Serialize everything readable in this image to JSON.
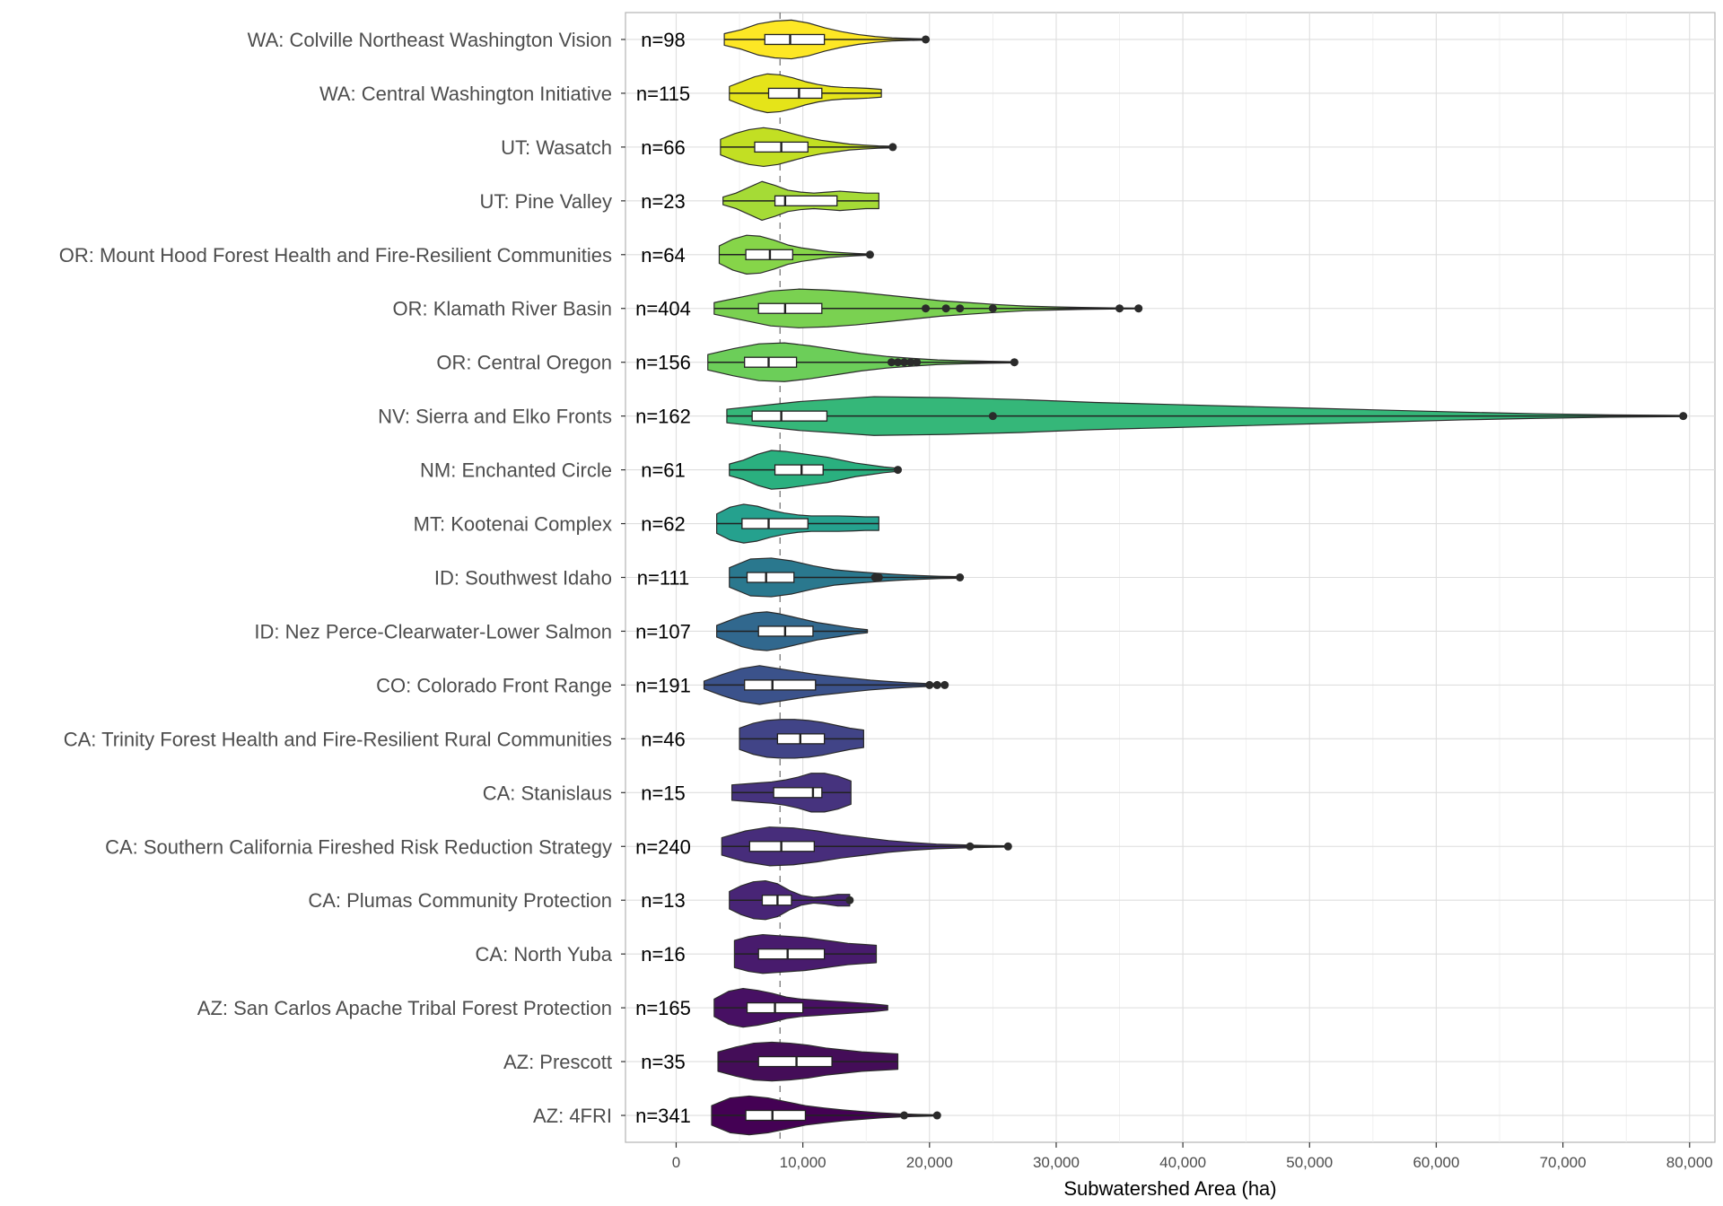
{
  "chart_data": {
    "type": "violin",
    "title": "",
    "xlabel": "Subwatershed Area (ha)",
    "ylabel": "",
    "xlim": [
      -4000,
      82000
    ],
    "x_ticks": [
      0,
      10000,
      20000,
      30000,
      40000,
      50000,
      60000,
      70000,
      80000
    ],
    "x_tick_labels": [
      "0",
      "10,000",
      "20,000",
      "30,000",
      "40,000",
      "50,000",
      "60,000",
      "70,000",
      "80,000"
    ],
    "reference_line": 8200,
    "grid": true,
    "legend": "none",
    "series": [
      {
        "name": "WA: Colville Northeast Washington Vision",
        "n_label": "n=98",
        "color": "#FDE725",
        "min": 3800,
        "q1": 7000,
        "median": 9000,
        "q3": 11700,
        "whisker_hi": 16000,
        "max": 19700,
        "outliers": [
          19700
        ],
        "density": [
          0.3,
          0.5,
          0.8,
          0.95,
          1.0,
          0.85,
          0.6,
          0.4,
          0.25,
          0.15,
          0.08,
          0.05,
          0.03
        ]
      },
      {
        "name": "WA: Central Washington Initiative",
        "n_label": "n=115",
        "color": "#E5E419",
        "min": 4200,
        "q1": 7300,
        "median": 9700,
        "q3": 11500,
        "whisker_hi": 16200,
        "max": 16200,
        "outliers": [],
        "density": [
          0.35,
          0.6,
          0.85,
          1.0,
          0.95,
          0.8,
          0.6,
          0.45,
          0.35,
          0.3,
          0.28,
          0.25,
          0.2
        ]
      },
      {
        "name": "UT: Wasatch",
        "n_label": "n=66",
        "color": "#C2DF23",
        "min": 3500,
        "q1": 6200,
        "median": 8300,
        "q3": 10400,
        "whisker_hi": 15500,
        "max": 17100,
        "outliers": [
          17100
        ],
        "density": [
          0.4,
          0.7,
          0.9,
          1.0,
          0.9,
          0.7,
          0.5,
          0.35,
          0.25,
          0.15,
          0.1,
          0.06,
          0.04
        ]
      },
      {
        "name": "UT: Pine Valley",
        "n_label": "n=23",
        "color": "#A5DB36",
        "min": 3700,
        "q1": 7800,
        "median": 8600,
        "q3": 12700,
        "whisker_hi": 16000,
        "max": 16000,
        "outliers": [],
        "density": [
          0.2,
          0.4,
          0.7,
          1.0,
          0.8,
          0.55,
          0.45,
          0.4,
          0.45,
          0.5,
          0.45,
          0.4,
          0.4
        ]
      },
      {
        "name": "OR: Mount Hood Forest Health and Fire-Resilient Communities",
        "n_label": "n=64",
        "color": "#86D549",
        "min": 3400,
        "q1": 5500,
        "median": 7400,
        "q3": 9200,
        "whisker_hi": 13000,
        "max": 15300,
        "outliers": [
          15300
        ],
        "density": [
          0.45,
          0.8,
          1.0,
          0.95,
          0.75,
          0.5,
          0.35,
          0.25,
          0.15,
          0.1,
          0.06,
          0.03
        ]
      },
      {
        "name": "OR: Klamath River Basin",
        "n_label": "n=404",
        "color": "#7AD151",
        "min": 3000,
        "q1": 6500,
        "median": 8600,
        "q3": 11500,
        "whisker_hi": 19000,
        "max": 36500,
        "outliers": [
          19700,
          21300,
          22400,
          25000,
          35000,
          36500
        ],
        "density": [
          0.3,
          0.6,
          0.9,
          1.0,
          0.95,
          0.85,
          0.7,
          0.55,
          0.4,
          0.3,
          0.2,
          0.12,
          0.08,
          0.05,
          0.03,
          0.02
        ]
      },
      {
        "name": "OR: Central Oregon",
        "n_label": "n=156",
        "color": "#6CCE59",
        "min": 2500,
        "q1": 5400,
        "median": 7300,
        "q3": 9500,
        "whisker_hi": 16500,
        "max": 26700,
        "outliers": [
          17000,
          17500,
          18000,
          18500,
          19000,
          26700
        ],
        "density": [
          0.4,
          0.7,
          0.95,
          1.0,
          0.85,
          0.65,
          0.45,
          0.3,
          0.2,
          0.12,
          0.08,
          0.05,
          0.03
        ]
      },
      {
        "name": "NV: Sierra and Elko Fronts",
        "n_label": "n=162",
        "color": "#35B779",
        "min": 4000,
        "q1": 6000,
        "median": 8300,
        "q3": 11900,
        "whisker_hi": 19000,
        "max": 79500,
        "outliers": [
          25000,
          79500
        ],
        "density": [
          0.35,
          0.75,
          1.0,
          0.95,
          0.85,
          0.7,
          0.6,
          0.5,
          0.4,
          0.3,
          0.2,
          0.12,
          0.06,
          0.03
        ]
      },
      {
        "name": "NM: Enchanted Circle",
        "n_label": "n=61",
        "color": "#2AB07F",
        "min": 4200,
        "q1": 7800,
        "median": 9900,
        "q3": 11600,
        "whisker_hi": 17500,
        "max": 17500,
        "outliers": [
          17500
        ],
        "density": [
          0.3,
          0.5,
          0.8,
          1.0,
          0.95,
          0.85,
          0.75,
          0.65,
          0.5,
          0.35,
          0.25,
          0.15,
          0.08
        ]
      },
      {
        "name": "MT: Kootenai Complex",
        "n_label": "n=62",
        "color": "#25A18E",
        "min": 3200,
        "q1": 5200,
        "median": 7300,
        "q3": 10400,
        "whisker_hi": 16000,
        "max": 16000,
        "outliers": [],
        "density": [
          0.5,
          0.85,
          1.0,
          0.9,
          0.7,
          0.55,
          0.45,
          0.4,
          0.4,
          0.4,
          0.38,
          0.35,
          0.35
        ]
      },
      {
        "name": "ID: Southwest Idaho",
        "n_label": "n=111",
        "color": "#2A788E",
        "min": 4200,
        "q1": 5600,
        "median": 7100,
        "q3": 9300,
        "whisker_hi": 15000,
        "max": 22400,
        "outliers": [
          15700,
          16000,
          22400
        ],
        "density": [
          0.5,
          0.95,
          1.0,
          0.85,
          0.6,
          0.4,
          0.3,
          0.22,
          0.15,
          0.1,
          0.06,
          0.04
        ]
      },
      {
        "name": "ID: Nez Perce-Clearwater-Lower Salmon",
        "n_label": "n=107",
        "color": "#31688E",
        "min": 3200,
        "q1": 6500,
        "median": 8600,
        "q3": 10800,
        "whisker_hi": 15100,
        "max": 15100,
        "outliers": [],
        "density": [
          0.3,
          0.55,
          0.8,
          0.95,
          1.0,
          0.9,
          0.75,
          0.6,
          0.45,
          0.35,
          0.25,
          0.15,
          0.08
        ]
      },
      {
        "name": "CO: Colorado Front Range",
        "n_label": "n=191",
        "color": "#3B528B",
        "min": 2200,
        "q1": 5400,
        "median": 7600,
        "q3": 11000,
        "whisker_hi": 18000,
        "max": 21200,
        "outliers": [
          20000,
          20600,
          21200
        ],
        "density": [
          0.2,
          0.55,
          0.85,
          1.0,
          0.85,
          0.7,
          0.55,
          0.45,
          0.35,
          0.25,
          0.18,
          0.12,
          0.08,
          0.05
        ]
      },
      {
        "name": "CA: Trinity Forest Health and Fire-Resilient Rural Communities",
        "n_label": "n=46",
        "color": "#414487",
        "min": 5000,
        "q1": 8000,
        "median": 9800,
        "q3": 11700,
        "whisker_hi": 14800,
        "max": 14800,
        "outliers": [],
        "density": [
          0.55,
          0.8,
          0.95,
          1.0,
          1.0,
          0.95,
          0.85,
          0.7,
          0.55,
          0.45
        ]
      },
      {
        "name": "CA: Stanislaus",
        "n_label": "n=15",
        "color": "#46337E",
        "min": 4400,
        "q1": 7700,
        "median": 10800,
        "q3": 11500,
        "whisker_hi": 13800,
        "max": 13800,
        "outliers": [],
        "density": [
          0.4,
          0.45,
          0.5,
          0.55,
          0.65,
          0.8,
          1.0,
          1.0,
          0.85,
          0.6
        ]
      },
      {
        "name": "CA: Southern California Fireshed Risk Reduction Strategy",
        "n_label": "n=240",
        "color": "#472D7B",
        "min": 3600,
        "q1": 5800,
        "median": 8300,
        "q3": 10900,
        "whisker_hi": 20000,
        "max": 26200,
        "outliers": [
          23200,
          26200
        ],
        "density": [
          0.45,
          0.8,
          1.0,
          0.95,
          0.8,
          0.6,
          0.45,
          0.3,
          0.2,
          0.12,
          0.08,
          0.05,
          0.03
        ]
      },
      {
        "name": "CA: Plumas Community Protection",
        "n_label": "n=13",
        "color": "#482576",
        "min": 4200,
        "q1": 6800,
        "median": 8000,
        "q3": 9100,
        "whisker_hi": 13700,
        "max": 13700,
        "outliers": [
          13700
        ],
        "density": [
          0.45,
          0.75,
          0.95,
          1.0,
          0.85,
          0.5,
          0.25,
          0.15,
          0.2,
          0.3,
          0.3
        ]
      },
      {
        "name": "CA: North Yuba",
        "n_label": "n=16",
        "color": "#481B6D",
        "min": 4600,
        "q1": 6500,
        "median": 8800,
        "q3": 11700,
        "whisker_hi": 15800,
        "max": 15800,
        "outliers": [],
        "density": [
          0.7,
          0.9,
          1.0,
          0.95,
          0.9,
          0.85,
          0.75,
          0.65,
          0.55,
          0.5,
          0.45
        ]
      },
      {
        "name": "AZ: San Carlos Apache Tribal Forest Protection",
        "n_label": "n=165",
        "color": "#471063",
        "min": 3000,
        "q1": 5600,
        "median": 7800,
        "q3": 10000,
        "whisker_hi": 16700,
        "max": 16700,
        "outliers": [],
        "density": [
          0.45,
          0.85,
          1.0,
          0.9,
          0.75,
          0.55,
          0.45,
          0.4,
          0.35,
          0.3,
          0.25,
          0.2,
          0.12
        ]
      },
      {
        "name": "AZ: Prescott",
        "n_label": "n=35",
        "color": "#440D58",
        "min": 3300,
        "q1": 6500,
        "median": 9500,
        "q3": 12300,
        "whisker_hi": 17500,
        "max": 17500,
        "outliers": [],
        "density": [
          0.5,
          0.75,
          0.95,
          1.0,
          0.95,
          0.85,
          0.7,
          0.6,
          0.5,
          0.45,
          0.4
        ]
      },
      {
        "name": "AZ: 4FRI",
        "n_label": "n=341",
        "color": "#440154",
        "min": 2800,
        "q1": 5500,
        "median": 7600,
        "q3": 10200,
        "whisker_hi": 18000,
        "max": 20600,
        "outliers": [
          18000,
          20600
        ],
        "density": [
          0.5,
          0.9,
          1.0,
          0.9,
          0.7,
          0.5,
          0.38,
          0.28,
          0.2,
          0.13,
          0.08,
          0.05,
          0.03
        ]
      }
    ]
  }
}
